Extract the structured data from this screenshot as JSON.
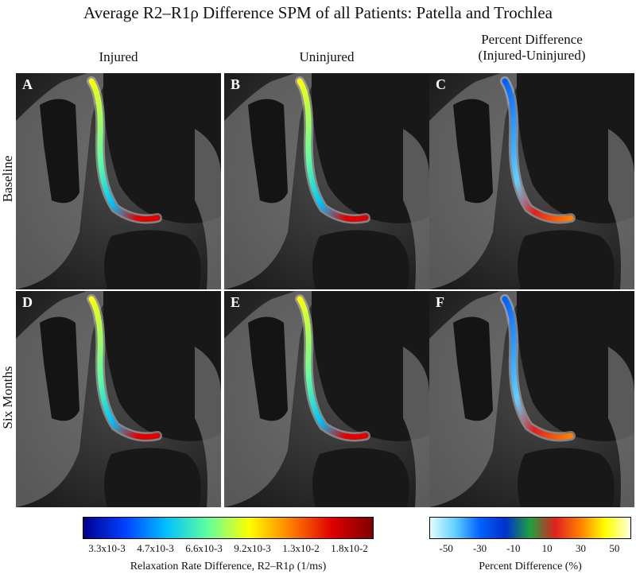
{
  "figure": {
    "title": "Average R2–R1ρ Difference SPM of all Patients: Patella and Trochlea",
    "columns": [
      {
        "label": "Injured"
      },
      {
        "label": "Uninjured"
      },
      {
        "label_line1": "Percent Difference",
        "label_line2": "(Injured-Uninjured)"
      }
    ],
    "rows": [
      {
        "label": "Baseline"
      },
      {
        "label": "Six Months"
      }
    ],
    "panels": [
      {
        "letter": "A",
        "map": "relaxation"
      },
      {
        "letter": "B",
        "map": "relaxation"
      },
      {
        "letter": "C",
        "map": "percent"
      },
      {
        "letter": "D",
        "map": "relaxation"
      },
      {
        "letter": "E",
        "map": "relaxation"
      },
      {
        "letter": "F",
        "map": "percent"
      }
    ]
  },
  "colorbar_relaxation": {
    "ticks": [
      "3.3x10-3",
      "4.7x10-3",
      "6.6x10-3",
      "9.2x10-3",
      "1.3x10-2",
      "1.8x10-2"
    ],
    "label": "Relaxation Rate Difference, R2–R1ρ (1/ms)",
    "colormap": "jet",
    "colors": [
      "#00008f",
      "#0040ff",
      "#00c0ff",
      "#60ffa0",
      "#ffff00",
      "#ff8000",
      "#e00000",
      "#7f0000"
    ]
  },
  "colorbar_percent": {
    "ticks": [
      "-50",
      "-30",
      "-10",
      "10",
      "30",
      "50"
    ],
    "label": "Percent Difference (%)",
    "colors": [
      "#e0ffff",
      "#60d0ff",
      "#0060ff",
      "#0030d0",
      "#20a040",
      "#e02020",
      "#ff8000",
      "#ffff00",
      "#ffffe0"
    ]
  }
}
